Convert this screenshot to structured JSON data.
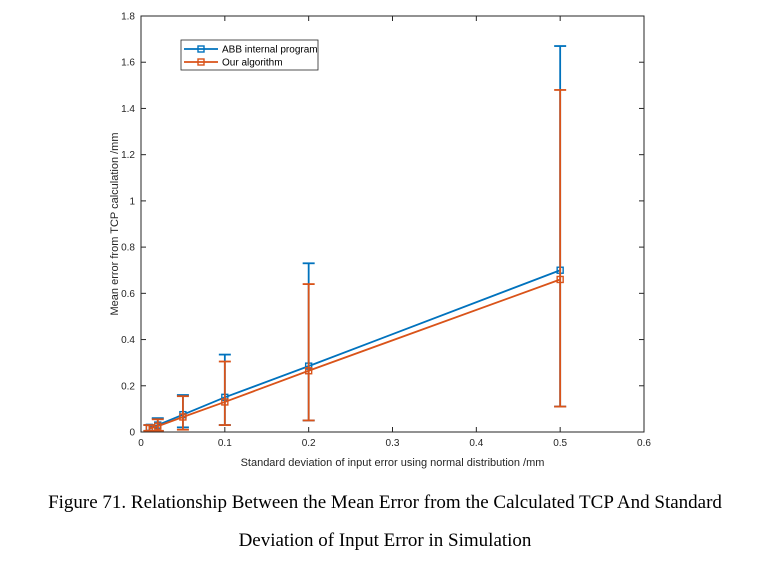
{
  "chart_data": {
    "type": "line",
    "xlabel": "Standard deviation of input error using normal distribution /mm",
    "ylabel": "Mean error from TCP calculation /mm",
    "xlim": [
      0,
      0.6
    ],
    "ylim": [
      0,
      1.8
    ],
    "xticks": [
      0,
      0.1,
      0.2,
      0.3,
      0.4,
      0.5,
      0.6
    ],
    "xtick_labels": [
      "0",
      "0.1",
      "0.2",
      "0.3",
      "0.4",
      "0.5",
      "0.6"
    ],
    "yticks": [
      0,
      0.2,
      0.4,
      0.6,
      0.8,
      1,
      1.2,
      1.4,
      1.6,
      1.8
    ],
    "ytick_labels": [
      "0",
      "0.2",
      "0.4",
      "0.6",
      "0.8",
      "1",
      "1.2",
      "1.4",
      "1.6",
      "1.8"
    ],
    "legend_position": "top-left",
    "grid": false,
    "series": [
      {
        "name": "ABB internal program",
        "color": "#0072BD",
        "marker": "square",
        "x": [
          0.01,
          0.02,
          0.05,
          0.1,
          0.2,
          0.5
        ],
        "y": [
          0.02,
          0.03,
          0.075,
          0.15,
          0.285,
          0.7
        ],
        "err_low": [
          0.005,
          0.005,
          0.02,
          0.03,
          0.05,
          0.11
        ],
        "err_high": [
          0.03,
          0.06,
          0.16,
          0.335,
          0.73,
          1.67
        ]
      },
      {
        "name": "Our algorithm",
        "color": "#D95319",
        "marker": "square",
        "x": [
          0.01,
          0.02,
          0.05,
          0.1,
          0.2,
          0.5
        ],
        "y": [
          0.015,
          0.025,
          0.065,
          0.13,
          0.265,
          0.66
        ],
        "err_low": [
          0.005,
          0.005,
          0.01,
          0.03,
          0.05,
          0.11
        ],
        "err_high": [
          0.03,
          0.055,
          0.155,
          0.305,
          0.64,
          1.48
        ]
      }
    ]
  },
  "caption": {
    "line1": "Figure 71. Relationship Between the Mean Error from the Calculated TCP And Standard",
    "line2": "Deviation of Input Error in Simulation"
  }
}
